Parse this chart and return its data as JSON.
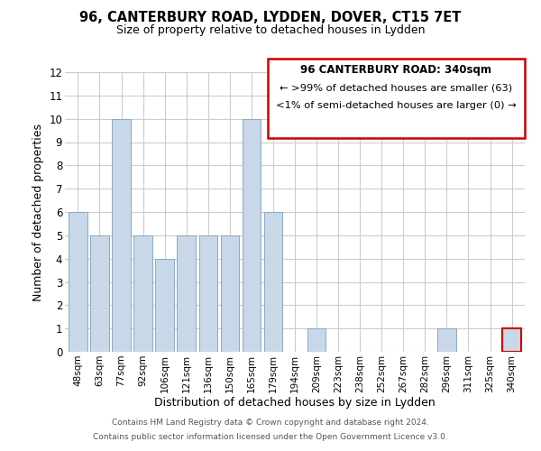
{
  "title": "96, CANTERBURY ROAD, LYDDEN, DOVER, CT15 7ET",
  "subtitle": "Size of property relative to detached houses in Lydden",
  "xlabel": "Distribution of detached houses by size in Lydden",
  "ylabel": "Number of detached properties",
  "bar_labels": [
    "48sqm",
    "63sqm",
    "77sqm",
    "92sqm",
    "106sqm",
    "121sqm",
    "136sqm",
    "150sqm",
    "165sqm",
    "179sqm",
    "194sqm",
    "209sqm",
    "223sqm",
    "238sqm",
    "252sqm",
    "267sqm",
    "282sqm",
    "296sqm",
    "311sqm",
    "325sqm",
    "340sqm"
  ],
  "bar_values": [
    6,
    5,
    10,
    5,
    4,
    5,
    5,
    5,
    10,
    6,
    0,
    1,
    0,
    0,
    0,
    0,
    0,
    1,
    0,
    0,
    1
  ],
  "bar_color": "#c8d8e8",
  "bar_edge_color": "#8aaabf",
  "highlight_index": 20,
  "highlight_bar_edge_color": "#cc0000",
  "annotation_box_edge_color": "#cc0000",
  "annotation_title": "96 CANTERBURY ROAD: 340sqm",
  "annotation_line1": "← >99% of detached houses are smaller (63)",
  "annotation_line2": "<1% of semi-detached houses are larger (0) →",
  "ylim": [
    0,
    12
  ],
  "yticks": [
    0,
    1,
    2,
    3,
    4,
    5,
    6,
    7,
    8,
    9,
    10,
    11,
    12
  ],
  "footer_line1": "Contains HM Land Registry data © Crown copyright and database right 2024.",
  "footer_line2": "Contains public sector information licensed under the Open Government Licence v3.0.",
  "background_color": "#ffffff",
  "grid_color": "#cccccc"
}
